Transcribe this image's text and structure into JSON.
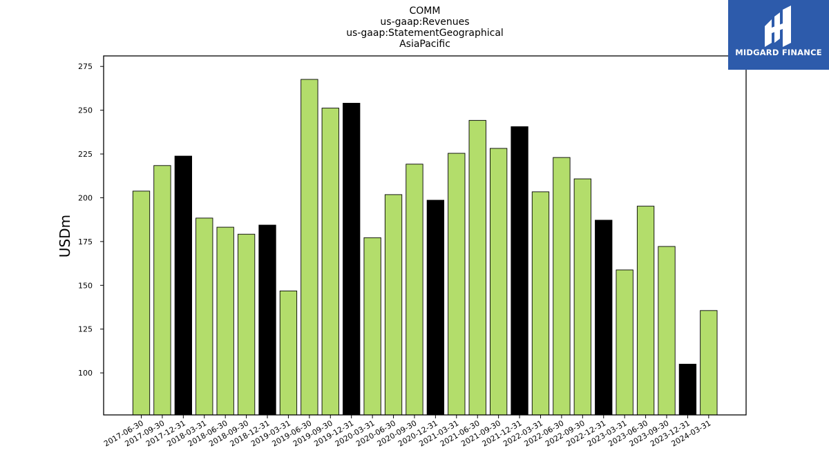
{
  "chart_data": {
    "type": "bar",
    "title_lines": [
      "COMM",
      "us-gaap:Revenues",
      "us-gaap:StatementGeographical",
      "AsiaPacific"
    ],
    "ylabel": "USDm",
    "xlabel": "",
    "ylim": [
      76,
      281
    ],
    "yticks": [
      100,
      125,
      150,
      175,
      200,
      225,
      250,
      275
    ],
    "categories": [
      "2017-06-30",
      "2017-09-30",
      "2017-12-31",
      "2018-03-31",
      "2018-06-30",
      "2018-09-30",
      "2018-12-31",
      "2019-03-31",
      "2019-06-30",
      "2019-09-30",
      "2019-12-31",
      "2020-03-31",
      "2020-06-30",
      "2020-09-30",
      "2020-12-31",
      "2021-03-31",
      "2021-06-30",
      "2021-09-30",
      "2021-12-31",
      "2022-03-31",
      "2022-06-30",
      "2022-09-30",
      "2022-12-31",
      "2023-03-31",
      "2023-06-30",
      "2023-09-30",
      "2023-12-31",
      "2024-03-31"
    ],
    "values": [
      203.8,
      218.4,
      223.8,
      188.4,
      183.2,
      179.2,
      184.4,
      146.8,
      267.6,
      251.2,
      254.0,
      177.2,
      201.8,
      219.2,
      198.6,
      225.4,
      244.2,
      228.2,
      240.6,
      203.4,
      223.0,
      210.8,
      187.2,
      158.8,
      195.2,
      172.2,
      105.0,
      135.6
    ],
    "highlight": [
      false,
      false,
      true,
      false,
      false,
      false,
      true,
      false,
      false,
      false,
      true,
      false,
      false,
      false,
      true,
      false,
      false,
      false,
      true,
      false,
      false,
      false,
      true,
      false,
      false,
      false,
      true,
      false
    ],
    "colors": {
      "bar": "#b3dd6b",
      "highlight_bar": "#000000",
      "edge": "#000000"
    },
    "grid": false,
    "legend": "none"
  },
  "logo": {
    "text": "MIDGARD FINANCE",
    "background": "#2d5bab"
  }
}
